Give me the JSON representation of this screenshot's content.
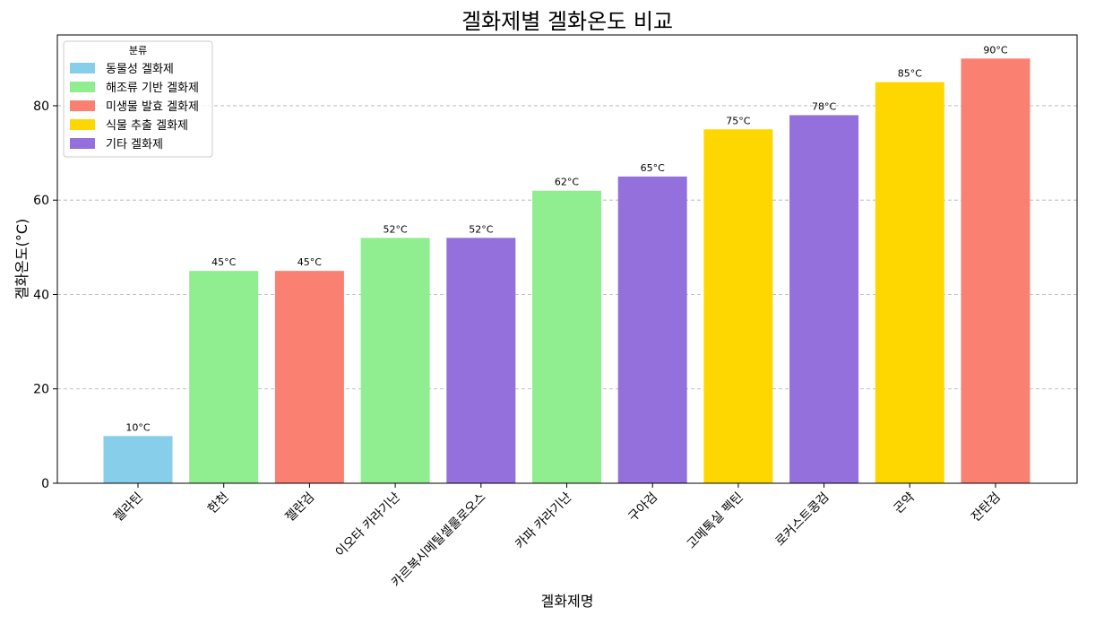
{
  "chart_data": {
    "type": "bar",
    "title": "겔화제별 겔화온도 비교",
    "xlabel": "겔화제명",
    "ylabel": "겔화온도(°C)",
    "ylim": [
      0,
      95
    ],
    "yticks": [
      0,
      20,
      40,
      60,
      80
    ],
    "grid": "y-dashed",
    "legend_title": "분류",
    "legend_position": "top-left",
    "categories": [
      "젤라틴",
      "한천",
      "젤란검",
      "이오타 카라기난",
      "카르복시메틸셀룰로오스",
      "카파 카라기난",
      "구아검",
      "고메톡실 펙틴",
      "로커스트콩검",
      "곤약",
      "잔탄검"
    ],
    "values": [
      10,
      45,
      45,
      52,
      52,
      62,
      65,
      75,
      78,
      85,
      90
    ],
    "value_labels": [
      "10°C",
      "45°C",
      "45°C",
      "52°C",
      "52°C",
      "62°C",
      "65°C",
      "75°C",
      "78°C",
      "85°C",
      "90°C"
    ],
    "groups": [
      0,
      1,
      2,
      1,
      4,
      1,
      4,
      3,
      4,
      3,
      2
    ],
    "legend": [
      {
        "name": "동물성 겔화제",
        "color": "#87CEEB"
      },
      {
        "name": "해조류 기반 겔화제",
        "color": "#90EE90"
      },
      {
        "name": "미생물 발효 겔화제",
        "color": "#FA8072"
      },
      {
        "name": "식물 추출 겔화제",
        "color": "#FFD700"
      },
      {
        "name": "기타 겔화제",
        "color": "#9370DB"
      }
    ]
  }
}
